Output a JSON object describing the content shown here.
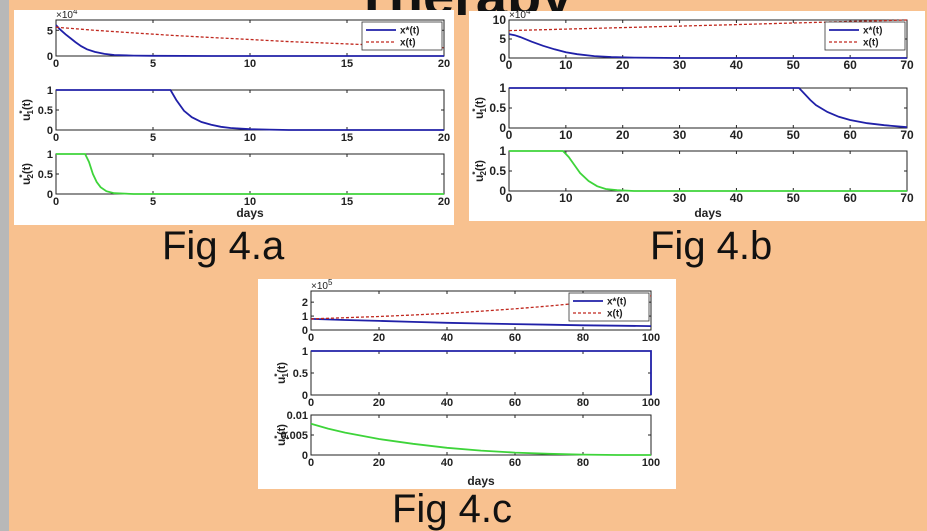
{
  "slide": {
    "title": "Therapy",
    "captions": {
      "a": "Fig 4.a",
      "b": "Fig 4.b",
      "c": "Fig 4.c"
    }
  },
  "colors": {
    "background": "#f8c18f",
    "x_star": "#2020a8",
    "x": "#c0281e",
    "u1": "#2020a8",
    "u2": "#3ed43a"
  },
  "chart_data": [
    {
      "figure": "Fig 4.a",
      "xlabel": "days",
      "xlim": [
        0,
        20
      ],
      "xticks": [
        0,
        5,
        10,
        15,
        20
      ],
      "plots": [
        {
          "type": "line",
          "multiplier": "×10",
          "multiplier_exp": "4",
          "ylim": [
            0,
            7
          ],
          "yticks": [
            0,
            5
          ],
          "legend": {
            "placement": "top-right",
            "entries": [
              "x*(t)",
              "x(t)"
            ]
          },
          "series": [
            {
              "key": "x_star",
              "name": "x*(t)",
              "style": "solid",
              "x": [
                0,
                0.2,
                0.5,
                0.8,
                1,
                1.3,
                1.6,
                2,
                2.5,
                3,
                4,
                5,
                8,
                12,
                20
              ],
              "y": [
                6,
                5.2,
                4.2,
                3.3,
                2.7,
                1.9,
                1.3,
                0.8,
                0.4,
                0.2,
                0.08,
                0.03,
                0,
                0,
                0
              ]
            },
            {
              "key": "x",
              "name": "x(t)",
              "style": "dashed",
              "x": [
                0,
                2,
                4,
                6,
                8,
                10,
                12,
                14,
                16,
                18,
                20
              ],
              "y": [
                5.6,
                5.0,
                4.5,
                4.0,
                3.6,
                3.2,
                2.8,
                2.5,
                2.2,
                1.9,
                1.6
              ]
            }
          ]
        },
        {
          "type": "line",
          "ylabel": "u",
          "ylabel_sub": "1",
          "ylim": [
            0,
            1
          ],
          "yticks": [
            0,
            0.5,
            1
          ],
          "series": [
            {
              "key": "u1",
              "name": "",
              "style": "solid",
              "x": [
                0,
                5.9,
                6.2,
                6.6,
                7,
                7.5,
                8,
                8.5,
                9,
                10,
                11,
                12,
                20
              ],
              "y": [
                1,
                1,
                0.75,
                0.48,
                0.32,
                0.2,
                0.13,
                0.08,
                0.05,
                0.02,
                0.01,
                0,
                0
              ]
            }
          ]
        },
        {
          "type": "line",
          "ylabel": "u",
          "ylabel_sub": "2",
          "ylim": [
            0,
            1
          ],
          "yticks": [
            0,
            0.5,
            1
          ],
          "series": [
            {
              "key": "u2",
              "name": "",
              "style": "solid",
              "x": [
                0,
                1.5,
                1.7,
                1.9,
                2.1,
                2.3,
                2.6,
                3,
                4,
                20
              ],
              "y": [
                1,
                1,
                0.8,
                0.5,
                0.3,
                0.17,
                0.07,
                0.02,
                0,
                0
              ]
            }
          ]
        }
      ]
    },
    {
      "figure": "Fig 4.b",
      "xlabel": "days",
      "xlim": [
        0,
        70
      ],
      "xticks": [
        0,
        10,
        20,
        30,
        40,
        50,
        60,
        70
      ],
      "plots": [
        {
          "type": "line",
          "multiplier": "×10",
          "multiplier_exp": "4",
          "ylim": [
            0,
            10
          ],
          "yticks": [
            0,
            5,
            10
          ],
          "legend": {
            "placement": "top-right",
            "entries": [
              "x*(t)",
              "x(t)"
            ]
          },
          "series": [
            {
              "key": "x_star",
              "name": "x*(t)",
              "style": "solid",
              "x": [
                0,
                1,
                2,
                4,
                6,
                8,
                10,
                12,
                15,
                18,
                22,
                30,
                70
              ],
              "y": [
                6.3,
                6.0,
                5.5,
                4.3,
                3.2,
                2.3,
                1.5,
                1.0,
                0.5,
                0.25,
                0.1,
                0,
                0
              ]
            },
            {
              "key": "x",
              "name": "x(t)",
              "style": "dashed",
              "x": [
                0,
                10,
                20,
                30,
                40,
                50,
                60,
                70
              ],
              "y": [
                7.2,
                7.6,
                8.0,
                8.4,
                8.8,
                9.2,
                9.6,
                10
              ]
            }
          ]
        },
        {
          "type": "line",
          "ylabel": "u",
          "ylabel_sub": "1",
          "ylim": [
            0,
            1
          ],
          "yticks": [
            0,
            0.5,
            1
          ],
          "series": [
            {
              "key": "u1",
              "name": "",
              "style": "solid",
              "x": [
                0,
                51,
                52,
                53,
                54,
                56,
                58,
                60,
                63,
                66,
                70
              ],
              "y": [
                1,
                1,
                0.85,
                0.7,
                0.57,
                0.4,
                0.28,
                0.2,
                0.12,
                0.07,
                0.02
              ]
            }
          ]
        },
        {
          "type": "line",
          "ylabel": "u",
          "ylabel_sub": "2",
          "ylim": [
            0,
            1
          ],
          "yticks": [
            0,
            0.5,
            1
          ],
          "series": [
            {
              "key": "u2",
              "name": "",
              "style": "solid",
              "x": [
                0,
                9.5,
                10.5,
                11.5,
                12.5,
                14,
                15.5,
                17,
                19,
                22,
                70
              ],
              "y": [
                1,
                1,
                0.85,
                0.65,
                0.45,
                0.25,
                0.12,
                0.05,
                0.02,
                0,
                0
              ]
            }
          ]
        }
      ]
    },
    {
      "figure": "Fig 4.c",
      "xlabel": "days",
      "xlim": [
        0,
        100
      ],
      "xticks": [
        0,
        20,
        40,
        60,
        80,
        100
      ],
      "plots": [
        {
          "type": "line",
          "multiplier": "×10",
          "multiplier_exp": "5",
          "ylim": [
            0,
            2.8
          ],
          "yticks": [
            0,
            1,
            2
          ],
          "legend": {
            "placement": "top-right",
            "entries": [
              "x*(t)",
              "x(t)"
            ]
          },
          "series": [
            {
              "key": "x_star",
              "name": "x*(t)",
              "style": "solid",
              "x": [
                0,
                10,
                20,
                30,
                40,
                50,
                60,
                70,
                80,
                90,
                100
              ],
              "y": [
                0.8,
                0.72,
                0.65,
                0.58,
                0.52,
                0.47,
                0.42,
                0.38,
                0.34,
                0.31,
                0.28
              ]
            },
            {
              "key": "x",
              "name": "x(t)",
              "style": "dashed",
              "x": [
                0,
                10,
                20,
                30,
                40,
                50,
                60,
                70,
                80,
                90,
                100
              ],
              "y": [
                0.8,
                0.88,
                0.97,
                1.08,
                1.2,
                1.35,
                1.52,
                1.72,
                1.95,
                2.2,
                2.45
              ]
            }
          ]
        },
        {
          "type": "line",
          "ylabel": "u",
          "ylabel_sub": "1",
          "ylim": [
            0,
            1
          ],
          "yticks": [
            0,
            0.5,
            1
          ],
          "series": [
            {
              "key": "u1",
              "name": "",
              "style": "solid",
              "x": [
                0,
                99.5,
                100,
                100
              ],
              "y": [
                1,
                1,
                1,
                0
              ]
            }
          ]
        },
        {
          "type": "line",
          "ylabel": "u",
          "ylabel_sub": "2",
          "ylim": [
            0,
            0.01
          ],
          "yticks": [
            0,
            0.005,
            0.01
          ],
          "yticklabels": [
            "0",
            "0.005",
            "0.01"
          ],
          "series": [
            {
              "key": "u2",
              "name": "",
              "style": "solid",
              "x": [
                0,
                5,
                10,
                20,
                30,
                40,
                50,
                60,
                70,
                80,
                90,
                100
              ],
              "y": [
                0.0078,
                0.0066,
                0.0056,
                0.004,
                0.0028,
                0.0018,
                0.0011,
                0.0006,
                0.0003,
                0.0001,
                0,
                0
              ]
            }
          ]
        }
      ]
    }
  ]
}
